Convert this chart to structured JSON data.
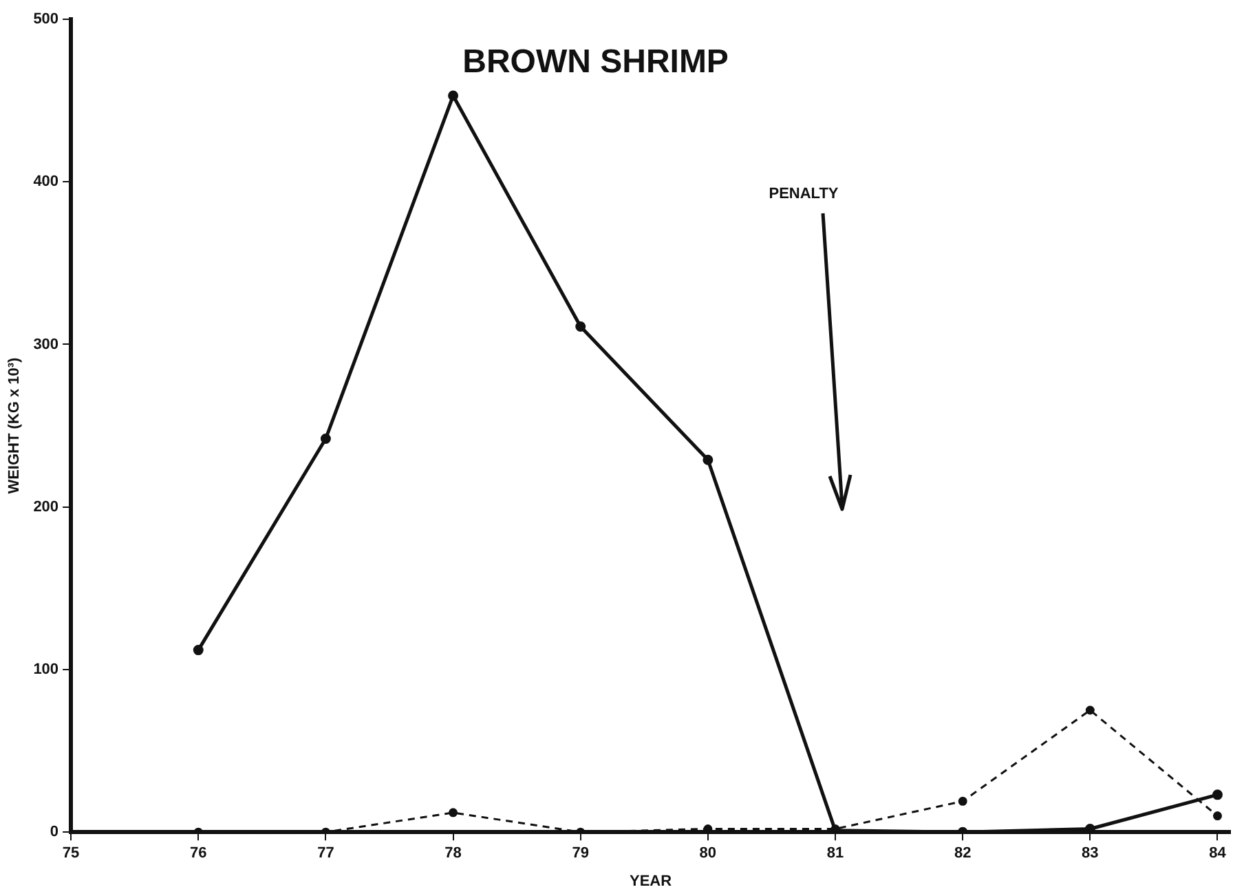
{
  "chart_data": {
    "type": "line",
    "title": "BROWN SHRIMP",
    "xlabel": "YEAR",
    "ylabel": "WEIGHT (KG x 10³)",
    "x": [
      76,
      77,
      78,
      79,
      80,
      81,
      82,
      83,
      84
    ],
    "series": [
      {
        "color": "#111111",
        "line_style": "solid",
        "values": [
          112,
          242,
          453,
          311,
          229,
          1,
          0,
          2,
          23
        ]
      },
      {
        "color": "#111111",
        "line_style": "dashed",
        "values": [
          0,
          0,
          12,
          0,
          2,
          2,
          19,
          75,
          10
        ]
      }
    ],
    "xlim": [
      75,
      84.1
    ],
    "xticks": [
      75,
      76,
      77,
      78,
      79,
      80,
      81,
      82,
      83,
      84
    ],
    "ylim": [
      0,
      500
    ],
    "yticks": [
      0,
      100,
      200,
      300,
      400,
      500
    ],
    "grid": false,
    "legend": false,
    "marker": "circle",
    "annotations": [
      "PENALTY"
    ]
  }
}
